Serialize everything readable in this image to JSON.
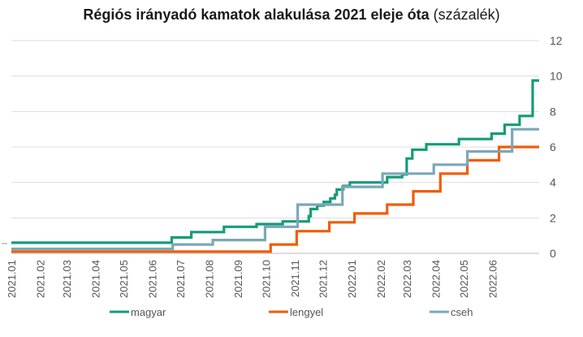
{
  "chart_data": {
    "type": "line",
    "title": "Régiós irányadó kamatok alakulása 2021 eleje óta",
    "subtitle": "(százalék)",
    "x_start": "2021-01-01",
    "x_end": "2022-07-21",
    "ylim": [
      0,
      12
    ],
    "yticks": [
      "0",
      "2",
      "4",
      "6",
      "8",
      "10",
      "12"
    ],
    "xticks": [
      {
        "label": "2021.01",
        "date": "2021-01-01"
      },
      {
        "label": "2021.02",
        "date": "2021-02-01"
      },
      {
        "label": "2021.03",
        "date": "2021-03-01"
      },
      {
        "label": "2021.04",
        "date": "2021-04-01"
      },
      {
        "label": "2021.05",
        "date": "2021-05-01"
      },
      {
        "label": "2021.06",
        "date": "2021-06-01"
      },
      {
        "label": "2021.07",
        "date": "2021-07-01"
      },
      {
        "label": "2021.08",
        "date": "2021-08-01"
      },
      {
        "label": "2021.09",
        "date": "2021-09-01"
      },
      {
        "label": "2021.10",
        "date": "2021-10-01"
      },
      {
        "label": "2021.11",
        "date": "2021-11-01"
      },
      {
        "label": "2021.12",
        "date": "2021-12-01"
      },
      {
        "label": "2022.01",
        "date": "2022-01-01"
      },
      {
        "label": "2022.02",
        "date": "2022-02-01"
      },
      {
        "label": "2022.03",
        "date": "2022-03-01"
      },
      {
        "label": "2022.04",
        "date": "2022-04-01"
      },
      {
        "label": "2022.05",
        "date": "2022-05-01"
      },
      {
        "label": "2022.06",
        "date": "2022-06-01"
      }
    ],
    "grid": true,
    "y_axis_side": "right",
    "legend_position": "bottom",
    "series": [
      {
        "name": "magyar",
        "color": "#149c77",
        "points": [
          [
            "2021-01-01",
            0.6
          ],
          [
            "2021-06-22",
            0.9
          ],
          [
            "2021-07-13",
            1.2
          ],
          [
            "2021-08-17",
            1.5
          ],
          [
            "2021-09-21",
            1.65
          ],
          [
            "2021-10-19",
            1.8
          ],
          [
            "2021-11-16",
            2.1
          ],
          [
            "2021-11-18",
            2.5
          ],
          [
            "2021-11-25",
            2.7
          ],
          [
            "2021-12-02",
            2.9
          ],
          [
            "2021-12-09",
            3.1
          ],
          [
            "2021-12-14",
            3.3
          ],
          [
            "2021-12-16",
            3.6
          ],
          [
            "2021-12-23",
            3.8
          ],
          [
            "2021-12-30",
            4.0
          ],
          [
            "2022-01-25",
            4.0
          ],
          [
            "2022-02-08",
            4.3
          ],
          [
            "2022-02-24",
            4.45
          ],
          [
            "2022-03-01",
            5.35
          ],
          [
            "2022-03-07",
            5.85
          ],
          [
            "2022-03-22",
            6.15
          ],
          [
            "2022-04-26",
            6.45
          ],
          [
            "2022-05-31",
            6.75
          ],
          [
            "2022-06-14",
            7.25
          ],
          [
            "2022-06-30",
            7.75
          ],
          [
            "2022-07-14",
            9.75
          ],
          [
            "2022-07-21",
            9.75
          ]
        ]
      },
      {
        "name": "lengyel",
        "color": "#f25c05",
        "points": [
          [
            "2021-01-01",
            0.1
          ],
          [
            "2021-10-06",
            0.5
          ],
          [
            "2021-11-03",
            1.25
          ],
          [
            "2021-12-08",
            1.75
          ],
          [
            "2022-01-04",
            2.25
          ],
          [
            "2022-02-08",
            2.75
          ],
          [
            "2022-03-08",
            3.5
          ],
          [
            "2022-04-06",
            4.5
          ],
          [
            "2022-05-05",
            5.25
          ],
          [
            "2022-06-08",
            6.0
          ],
          [
            "2022-07-21",
            6.0
          ]
        ]
      },
      {
        "name": "cseh",
        "color": "#7ba7b9",
        "points": [
          [
            "2021-01-01",
            0.25
          ],
          [
            "2021-06-23",
            0.5
          ],
          [
            "2021-08-05",
            0.75
          ],
          [
            "2021-09-30",
            1.5
          ],
          [
            "2021-11-04",
            2.75
          ],
          [
            "2021-12-22",
            3.75
          ],
          [
            "2022-02-03",
            4.5
          ],
          [
            "2022-03-30",
            5.0
          ],
          [
            "2022-05-05",
            5.75
          ],
          [
            "2022-06-22",
            7.0
          ],
          [
            "2022-07-21",
            7.0
          ]
        ]
      }
    ]
  }
}
